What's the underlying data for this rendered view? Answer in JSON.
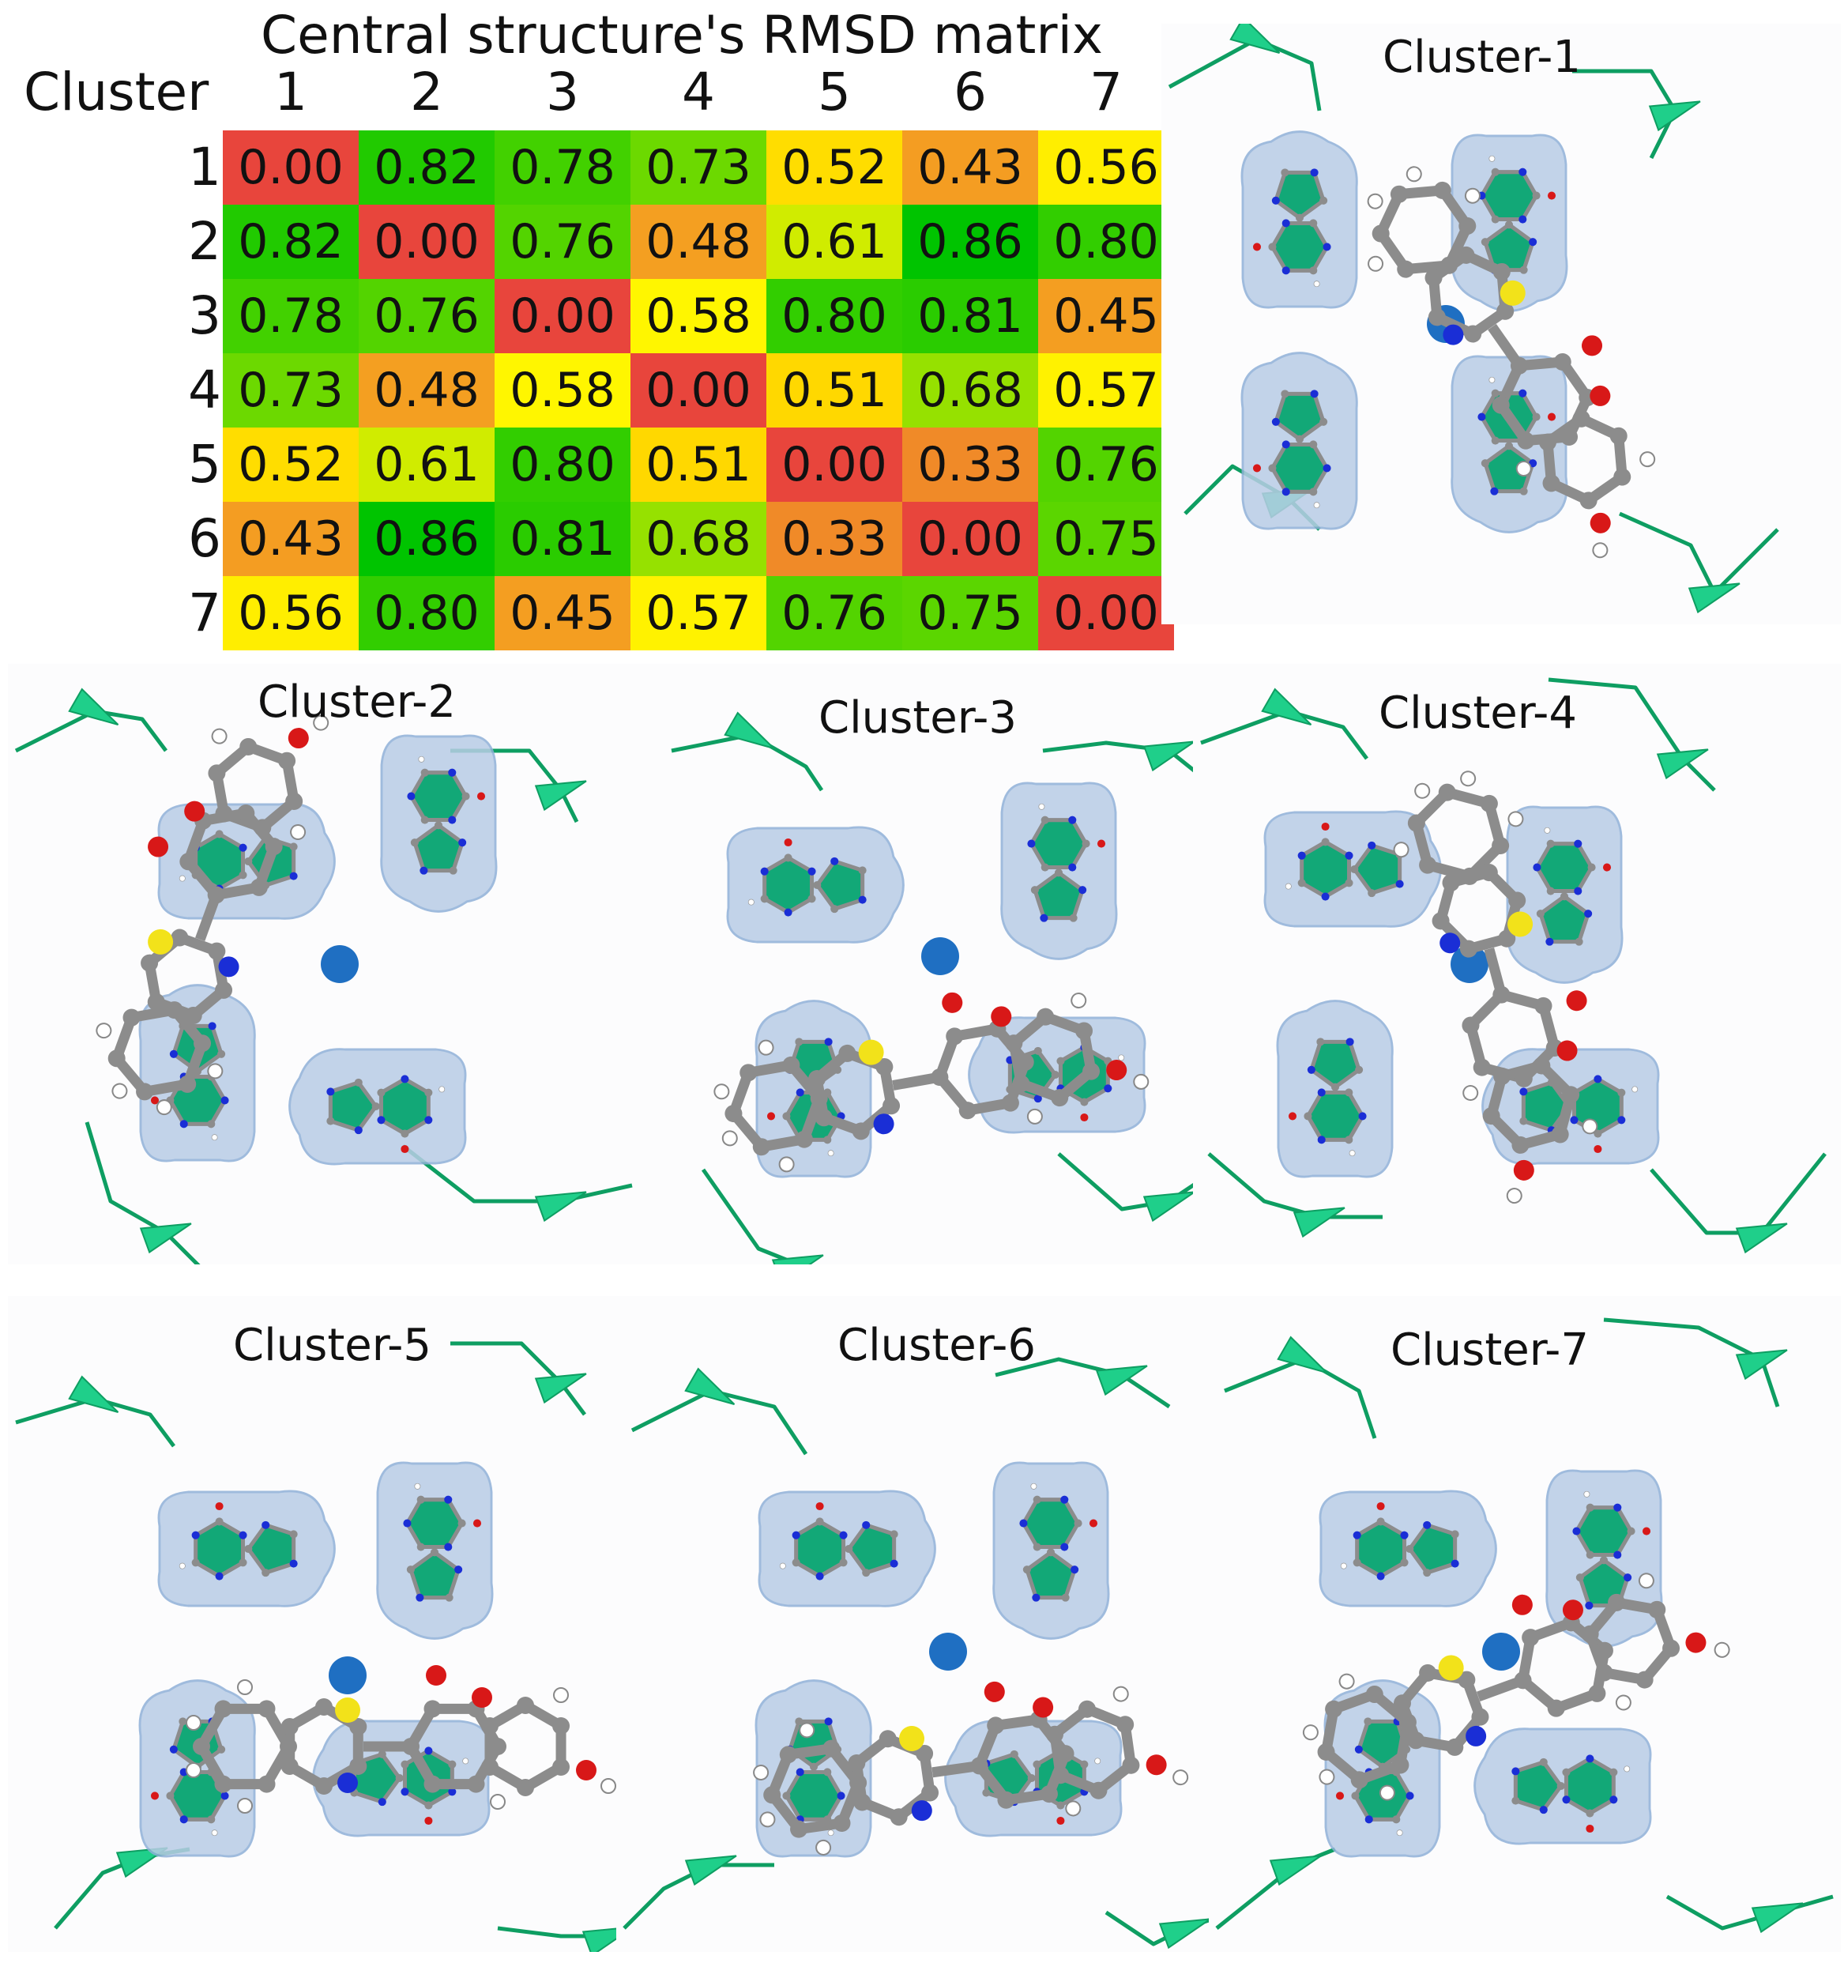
{
  "matrix": {
    "title": "Central structure's RMSD matrix",
    "corner_label": "Cluster",
    "columns": [
      "1",
      "2",
      "3",
      "4",
      "5",
      "6",
      "7"
    ],
    "rows": [
      "1",
      "2",
      "3",
      "4",
      "5",
      "6",
      "7"
    ],
    "values": [
      [
        "0.00",
        "0.82",
        "0.78",
        "0.73",
        "0.52",
        "0.43",
        "0.56"
      ],
      [
        "0.82",
        "0.00",
        "0.76",
        "0.48",
        "0.61",
        "0.86",
        "0.80"
      ],
      [
        "0.78",
        "0.76",
        "0.00",
        "0.58",
        "0.80",
        "0.81",
        "0.45"
      ],
      [
        "0.73",
        "0.48",
        "0.58",
        "0.00",
        "0.51",
        "0.68",
        "0.57"
      ],
      [
        "0.52",
        "0.61",
        "0.80",
        "0.51",
        "0.00",
        "0.33",
        "0.76"
      ],
      [
        "0.43",
        "0.86",
        "0.81",
        "0.68",
        "0.33",
        "0.00",
        "0.75"
      ],
      [
        "0.56",
        "0.80",
        "0.45",
        "0.57",
        "0.76",
        "0.75",
        "0.00"
      ]
    ]
  },
  "panels": [
    {
      "title": "Cluster-1"
    },
    {
      "title": "Cluster-2"
    },
    {
      "title": "Cluster-3"
    },
    {
      "title": "Cluster-4"
    },
    {
      "title": "Cluster-5"
    },
    {
      "title": "Cluster-6"
    },
    {
      "title": "Cluster-7"
    }
  ],
  "colors": {
    "ribbon": "#1fcf8a",
    "ribbon_dark": "#0e9e62",
    "surface": "#b9cde6",
    "surface_edge": "#8fb0d8",
    "base_fill": "#12a877",
    "nitrogen": "#1a2ed6",
    "oxygen": "#d81818",
    "sulfur": "#f2e21a",
    "carbon": "#8c8c8c",
    "hydrogen": "#ffffff",
    "ion": "#1f6fc2"
  },
  "heat_scale": {
    "low": "#e8453c",
    "mid_low": "#f6a820",
    "mid": "#ffff00",
    "high": "#00c400"
  }
}
